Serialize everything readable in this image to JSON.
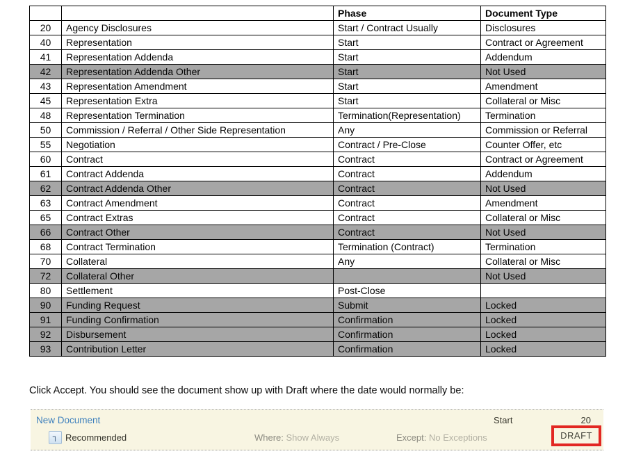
{
  "table": {
    "headers": {
      "num": "",
      "name": "",
      "phase": "Phase",
      "doc": "Document Type"
    },
    "rows": [
      {
        "num": "20",
        "name": "Agency Disclosures",
        "phase": "Start / Contract Usually",
        "doc": "Disclosures",
        "shaded": false
      },
      {
        "num": "40",
        "name": "Representation",
        "phase": "Start",
        "doc": "Contract or Agreement",
        "shaded": false
      },
      {
        "num": "41",
        "name": "Representation Addenda",
        "phase": "Start",
        "doc": "Addendum",
        "shaded": false
      },
      {
        "num": "42",
        "name": "Representation Addenda Other",
        "phase": "Start",
        "doc": "Not Used",
        "shaded": true
      },
      {
        "num": "43",
        "name": "Representation Amendment",
        "phase": "Start",
        "doc": "Amendment",
        "shaded": false
      },
      {
        "num": "45",
        "name": "Representation Extra",
        "phase": "Start",
        "doc": "Collateral or Misc",
        "shaded": false
      },
      {
        "num": "48",
        "name": "Representation Termination",
        "phase": "Termination(Representation)",
        "doc": "Termination",
        "shaded": false
      },
      {
        "num": "50",
        "name": "Commission / Referral / Other Side Representation",
        "phase": "Any",
        "doc": "Commission or Referral",
        "shaded": false
      },
      {
        "num": "55",
        "name": "Negotiation",
        "phase": "Contract / Pre-Close",
        "doc": "Counter Offer, etc",
        "shaded": false
      },
      {
        "num": "60",
        "name": "Contract",
        "phase": "Contract",
        "doc": "Contract or Agreement",
        "shaded": false
      },
      {
        "num": "61",
        "name": "Contract Addenda",
        "phase": "Contract",
        "doc": "Addendum",
        "shaded": false
      },
      {
        "num": "62",
        "name": "Contract Addenda Other",
        "phase": "Contract",
        "doc": "Not Used",
        "shaded": true
      },
      {
        "num": "63",
        "name": "Contract Amendment",
        "phase": "Contract",
        "doc": "Amendment",
        "shaded": false
      },
      {
        "num": "65",
        "name": "Contract Extras",
        "phase": "Contract",
        "doc": "Collateral or Misc",
        "shaded": false
      },
      {
        "num": "66",
        "name": "Contract Other",
        "phase": "Contract",
        "doc": "Not Used",
        "shaded": true
      },
      {
        "num": "68",
        "name": "Contract Termination",
        "phase": "Termination (Contract)",
        "doc": "Termination",
        "shaded": false
      },
      {
        "num": "70",
        "name": "Collateral",
        "phase": "Any",
        "doc": "Collateral or Misc",
        "shaded": false
      },
      {
        "num": "72",
        "name": "Collateral Other",
        "phase": "",
        "doc": "Not Used",
        "shaded": true
      },
      {
        "num": "80",
        "name": "Settlement",
        "phase": "Post-Close",
        "doc": "",
        "shaded": false
      },
      {
        "num": "90",
        "name": "Funding Request",
        "phase": "Submit",
        "doc": "Locked",
        "shaded": true
      },
      {
        "num": "91",
        "name": "Funding Confirmation",
        "phase": "Confirmation",
        "doc": "Locked",
        "shaded": true
      },
      {
        "num": "92",
        "name": "Disbursement",
        "phase": "Confirmation",
        "doc": "Locked",
        "shaded": true
      },
      {
        "num": "93",
        "name": "Contribution Letter",
        "phase": "Confirmation",
        "doc": "Locked",
        "shaded": true
      }
    ]
  },
  "instruction": "Click Accept. You should see the document show up with Draft where the date would normally be:",
  "panel": {
    "title": "New Document",
    "phase": "Start",
    "number": "20",
    "icon_glyph": "┐",
    "recommended_label": "Recommended",
    "where_label": "Where:",
    "where_value": "Show Always",
    "except_label": "Except:",
    "except_value": "No Exceptions",
    "draft_label": "DRAFT"
  },
  "colors": {
    "shaded_row": "#a6a6a6",
    "panel_bg": "#f8f5e2",
    "title_blue": "#3f81bd",
    "draft_red": "#e22722"
  }
}
